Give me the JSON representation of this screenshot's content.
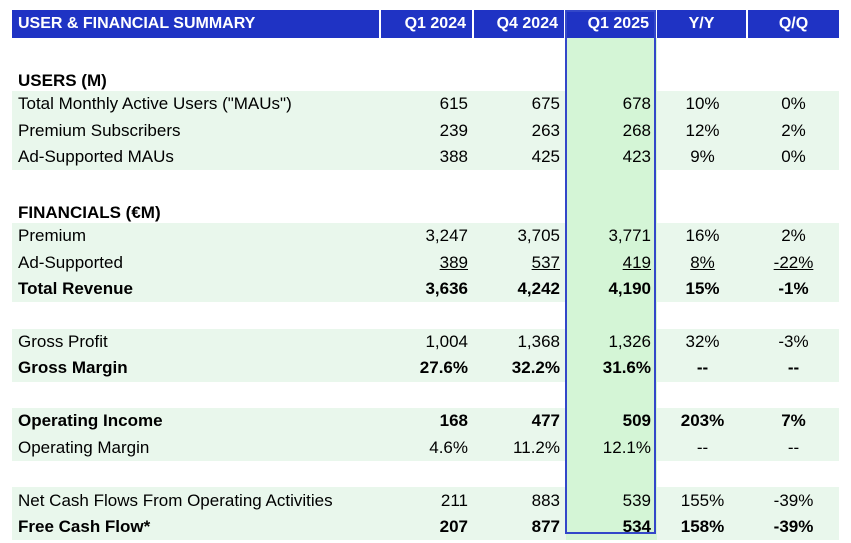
{
  "table": {
    "title": "USER & FINANCIAL SUMMARY",
    "columns": [
      "Q1 2024",
      "Q4 2024",
      "Q1 2025",
      "Y/Y",
      "Q/Q"
    ],
    "highlight_color": "#d4f5d6",
    "header_color": "#1f33c4",
    "sections": {
      "users": "USERS (M)",
      "financials": "FINANCIALS (€M)"
    },
    "rows": {
      "mau": {
        "label": "Total Monthly Active Users (\"MAUs\")",
        "values": [
          "615",
          "675",
          "678",
          "10%",
          "0%"
        ]
      },
      "premium_subs": {
        "label": "Premium Subscribers",
        "values": [
          "239",
          "263",
          "268",
          "12%",
          "2%"
        ]
      },
      "ad_maus": {
        "label": "Ad-Supported MAUs",
        "values": [
          "388",
          "425",
          "423",
          "9%",
          "0%"
        ]
      },
      "premium_rev": {
        "label": "Premium",
        "values": [
          "3,247",
          "3,705",
          "3,771",
          "16%",
          "2%"
        ]
      },
      "ad_rev": {
        "label": "Ad-Supported",
        "values": [
          "389",
          "537",
          "419",
          "8%",
          "-22%"
        ]
      },
      "total_rev": {
        "label": "Total Revenue",
        "values": [
          "3,636",
          "4,242",
          "4,190",
          "15%",
          "-1%"
        ]
      },
      "gross_profit": {
        "label": "Gross Profit",
        "values": [
          "1,004",
          "1,368",
          "1,326",
          "32%",
          "-3%"
        ]
      },
      "gross_margin": {
        "label": "Gross Margin",
        "values": [
          "27.6%",
          "32.2%",
          "31.6%",
          "--",
          "--"
        ]
      },
      "op_income": {
        "label": "Operating Income",
        "values": [
          "168",
          "477",
          "509",
          "203%",
          "7%"
        ]
      },
      "op_margin": {
        "label": "Operating Margin",
        "values": [
          "4.6%",
          "11.2%",
          "12.1%",
          "--",
          "--"
        ]
      },
      "ncf_ops": {
        "label": "Net Cash Flows From Operating Activities",
        "values": [
          "211",
          "883",
          "539",
          "155%",
          "-39%"
        ]
      },
      "fcf": {
        "label": "Free Cash Flow*",
        "values": [
          "207",
          "877",
          "534",
          "158%",
          "-39%"
        ]
      }
    }
  }
}
